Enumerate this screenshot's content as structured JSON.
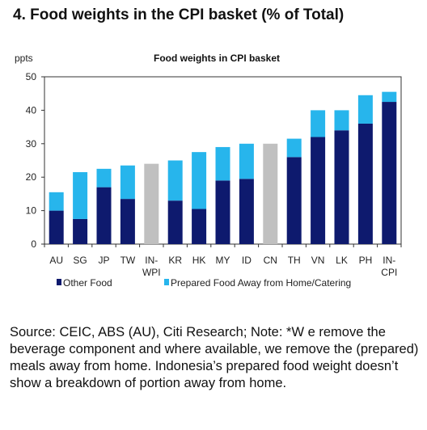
{
  "heading": "4. Food weights in the CPI basket (% of Total)",
  "source_note": "Source: CEIC, ABS (AU), Citi Research; Note: *W e remove the beverage component and where available, we remove the (prepared) meals away from home. Indonesia’s prepared food weight doesn’t show a breakdown of portion away from home.",
  "colors": {
    "other_food": "#0e1a6e",
    "prepared_food": "#27b5ec",
    "total_only": "#c0c0c0"
  },
  "chart_data": {
    "type": "bar",
    "stacked": true,
    "title": "Food weights in CPI basket",
    "ylabel": "ppts",
    "xlabel": "",
    "ylim": [
      0,
      50
    ],
    "yticks": [
      0,
      10,
      20,
      30,
      40,
      50
    ],
    "grid": false,
    "legend_position": "bottom",
    "categories": [
      [
        "AU"
      ],
      [
        "SG"
      ],
      [
        "JP"
      ],
      [
        "TW"
      ],
      [
        "IN-",
        "WPI"
      ],
      [
        "KR"
      ],
      [
        "HK"
      ],
      [
        "MY"
      ],
      [
        "ID"
      ],
      [
        "CN"
      ],
      [
        "TH"
      ],
      [
        "VN"
      ],
      [
        "LK"
      ],
      [
        "PH"
      ],
      [
        "IN-",
        "CPI"
      ]
    ],
    "series": [
      {
        "name": "Other Food",
        "color": "#0e1a6e",
        "values": [
          10,
          7.5,
          17,
          13.5,
          null,
          13,
          10.5,
          19,
          19.5,
          null,
          26,
          32,
          34,
          36,
          42.5
        ]
      },
      {
        "name": "Prepared Food Away from Home/Catering",
        "color": "#27b5ec",
        "values": [
          5.5,
          14,
          5.5,
          10,
          null,
          12,
          17,
          10,
          10.5,
          null,
          5.5,
          8,
          6,
          8.5,
          3
        ]
      }
    ],
    "totals_only": [
      {
        "index": 4,
        "value": 24,
        "color": "#c0c0c0"
      },
      {
        "index": 9,
        "value": 30,
        "color": "#c0c0c0"
      }
    ]
  }
}
